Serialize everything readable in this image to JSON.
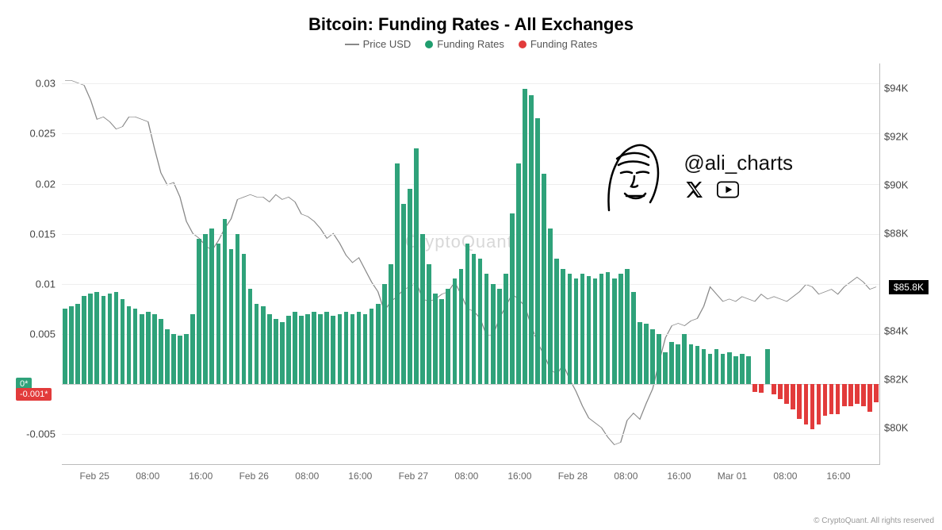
{
  "title": "Bitcoin: Funding Rates - All Exchanges",
  "title_fontsize": 22,
  "legend": [
    {
      "type": "line",
      "label": "Price USD",
      "color": "#888888"
    },
    {
      "type": "dot",
      "label": "Funding Rates",
      "color": "#1f9d6e"
    },
    {
      "type": "dot",
      "label": "Funding Rates",
      "color": "#e23b3b"
    }
  ],
  "colors": {
    "bar_positive": "#2fa27a",
    "bar_negative": "#e23b3b",
    "price_line": "#888888",
    "grid": "#eeeeee",
    "axis": "#bbbbbb",
    "zero_badge_bg": "#2fa27a",
    "neg_badge_bg": "#e23b3b",
    "price_badge_bg": "#000000",
    "background": "#ffffff"
  },
  "left_axis": {
    "min": -0.008,
    "max": 0.032,
    "ticks": [
      0.03,
      0.025,
      0.02,
      0.015,
      0.01,
      0.005,
      -0.005
    ],
    "zero_label": "0*",
    "neg_label": "-0.001*"
  },
  "right_axis": {
    "min": 78500,
    "max": 95000,
    "ticks": [
      {
        "v": 94000,
        "label": "$94K"
      },
      {
        "v": 92000,
        "label": "$92K"
      },
      {
        "v": 90000,
        "label": "$90K"
      },
      {
        "v": 88000,
        "label": "$88K"
      },
      {
        "v": 84000,
        "label": "$84K"
      },
      {
        "v": 82000,
        "label": "$82K"
      },
      {
        "v": 80000,
        "label": "$80K"
      }
    ],
    "price_badge": {
      "v": 85800,
      "label": "$85.8K"
    }
  },
  "x_axis": {
    "labels": [
      "Feb 25",
      "08:00",
      "16:00",
      "Feb 26",
      "08:00",
      "16:00",
      "Feb 27",
      "08:00",
      "16:00",
      "Feb 28",
      "08:00",
      "16:00",
      "Mar 01",
      "08:00",
      "16:00"
    ],
    "positions_pct": [
      4,
      10.5,
      17,
      23.5,
      30,
      36.5,
      43,
      49.5,
      56,
      62.5,
      69,
      75.5,
      82,
      88.5,
      95
    ]
  },
  "bar_width_pct": 0.55,
  "bars": [
    0.0075,
    0.0078,
    0.008,
    0.0088,
    0.009,
    0.0092,
    0.0088,
    0.009,
    0.0092,
    0.0085,
    0.0078,
    0.0075,
    0.007,
    0.0072,
    0.007,
    0.0065,
    0.0055,
    0.005,
    0.0048,
    0.005,
    0.007,
    0.0145,
    0.015,
    0.0155,
    0.014,
    0.0165,
    0.0135,
    0.015,
    0.013,
    0.0095,
    0.008,
    0.0078,
    0.007,
    0.0065,
    0.0062,
    0.0068,
    0.0072,
    0.0068,
    0.007,
    0.0072,
    0.007,
    0.0072,
    0.0068,
    0.007,
    0.0072,
    0.007,
    0.0072,
    0.007,
    0.0075,
    0.008,
    0.01,
    0.012,
    0.022,
    0.018,
    0.0195,
    0.0235,
    0.015,
    0.012,
    0.009,
    0.0085,
    0.0095,
    0.0105,
    0.0115,
    0.014,
    0.013,
    0.0125,
    0.011,
    0.01,
    0.0095,
    0.011,
    0.017,
    0.022,
    0.0295,
    0.0288,
    0.0265,
    0.021,
    0.0155,
    0.0125,
    0.0115,
    0.011,
    0.0105,
    0.011,
    0.0108,
    0.0105,
    0.011,
    0.0112,
    0.0105,
    0.011,
    0.0115,
    0.0092,
    0.0062,
    0.006,
    0.0055,
    0.005,
    0.0032,
    0.0042,
    0.004,
    0.005,
    0.004,
    0.0038,
    0.0035,
    0.003,
    0.0035,
    0.003,
    0.0032,
    0.0028,
    0.003,
    0.0028,
    -0.0008,
    -0.0009,
    0.0035,
    -0.001,
    -0.0015,
    -0.002,
    -0.0025,
    -0.0035,
    -0.004,
    -0.0045,
    -0.004,
    -0.0032,
    -0.003,
    -0.003,
    -0.0022,
    -0.0022,
    -0.002,
    -0.0022,
    -0.0028,
    -0.0018
  ],
  "price": [
    94300,
    94300,
    94200,
    94100,
    93500,
    92700,
    92800,
    92600,
    92300,
    92400,
    92800,
    92800,
    92700,
    92600,
    91500,
    90500,
    90000,
    90100,
    89500,
    88500,
    88000,
    87800,
    87500,
    87300,
    87700,
    88200,
    88600,
    89400,
    89500,
    89600,
    89500,
    89500,
    89300,
    89600,
    89400,
    89500,
    89300,
    88800,
    88700,
    88500,
    88200,
    87800,
    88000,
    87600,
    87100,
    86800,
    87000,
    86500,
    86000,
    85600,
    84800,
    85200,
    85400,
    85700,
    85800,
    86000,
    85300,
    85200,
    85300,
    85500,
    85600,
    86000,
    85500,
    84900,
    84800,
    84500,
    83800,
    83800,
    84500,
    85000,
    85500,
    85300,
    85000,
    84200,
    83500,
    83000,
    82400,
    82200,
    82600,
    82000,
    81500,
    80900,
    80400,
    80200,
    80000,
    79600,
    79300,
    79400,
    80300,
    80600,
    80350,
    81000,
    81600,
    82700,
    83700,
    84200,
    84300,
    84200,
    84400,
    84500,
    85000,
    85800,
    85500,
    85200,
    85300,
    85200,
    85400,
    85300,
    85200,
    85500,
    85300,
    85400,
    85300,
    85200,
    85400,
    85600,
    85900,
    85800,
    85500,
    85600,
    85700,
    85500,
    85800,
    86000,
    86200,
    86000,
    85700,
    85800
  ],
  "watermark": "CryptoQuant",
  "attribution": {
    "handle": "@ali_charts",
    "x_icon": "x-icon",
    "youtube_icon": "youtube-icon"
  },
  "copyright": "© CryptoQuant. All rights reserved"
}
